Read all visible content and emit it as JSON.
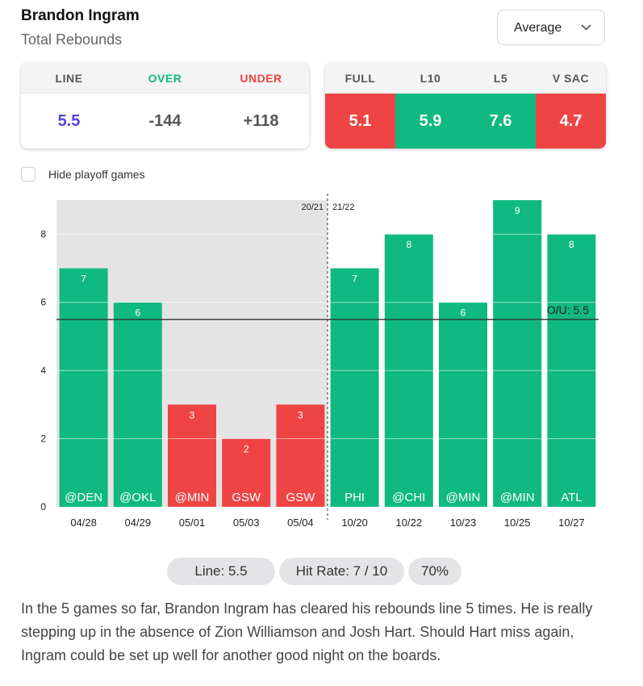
{
  "header": {
    "player": "Brandon Ingram",
    "stat": "Total Rebounds",
    "dropdown_value": "Average"
  },
  "odds": {
    "headers": [
      "LINE",
      "OVER",
      "UNDER"
    ],
    "values": [
      "5.5",
      "-144",
      "+118"
    ],
    "header_colors": [
      "#555555",
      "#10b981",
      "#ef4444"
    ],
    "value_colors": [
      "#4f46e5",
      "#555555",
      "#555555"
    ]
  },
  "splits": {
    "headers": [
      "FULL",
      "L10",
      "L5",
      "V SAC"
    ],
    "values": [
      "5.1",
      "5.9",
      "7.6",
      "4.7"
    ],
    "colors": [
      "#ef4444",
      "#10b981",
      "#10b981",
      "#ef4444"
    ]
  },
  "filter": {
    "hide_playoff_label": "Hide playoff games",
    "checked": false
  },
  "chart_data": {
    "type": "bar",
    "categories": [
      "04/28",
      "04/29",
      "05/01",
      "05/03",
      "05/04",
      "10/20",
      "10/22",
      "10/23",
      "10/25",
      "10/27"
    ],
    "opponents": [
      "@DEN",
      "@OKL",
      "@MIN",
      "GSW",
      "GSW",
      "PHI",
      "@CHI",
      "@MIN",
      "@MIN",
      "ATL"
    ],
    "values": [
      7,
      6,
      3,
      2,
      3,
      7,
      8,
      6,
      9,
      8
    ],
    "line": 5.5,
    "line_label": "O/U: 5.5",
    "ylim": [
      0,
      9
    ],
    "yticks": [
      0,
      2,
      4,
      6,
      8
    ],
    "season_labels": [
      "20/21",
      "21/22"
    ],
    "season_split_index": 5,
    "colors": {
      "over": "#10b981",
      "under": "#ef4444",
      "prev_season_bg": "#e4e4e4"
    }
  },
  "summary": {
    "line": "Line: 5.5",
    "hit_rate": "Hit Rate: 7 / 10",
    "percent": "70%"
  },
  "blurb": "In the 5 games so far, Brandon Ingram has cleared his rebounds line 5 times. He is really stepping up in the absence of Zion Williamson and Josh Hart. Should Hart miss again, Ingram could be set up well for another good night on the boards."
}
